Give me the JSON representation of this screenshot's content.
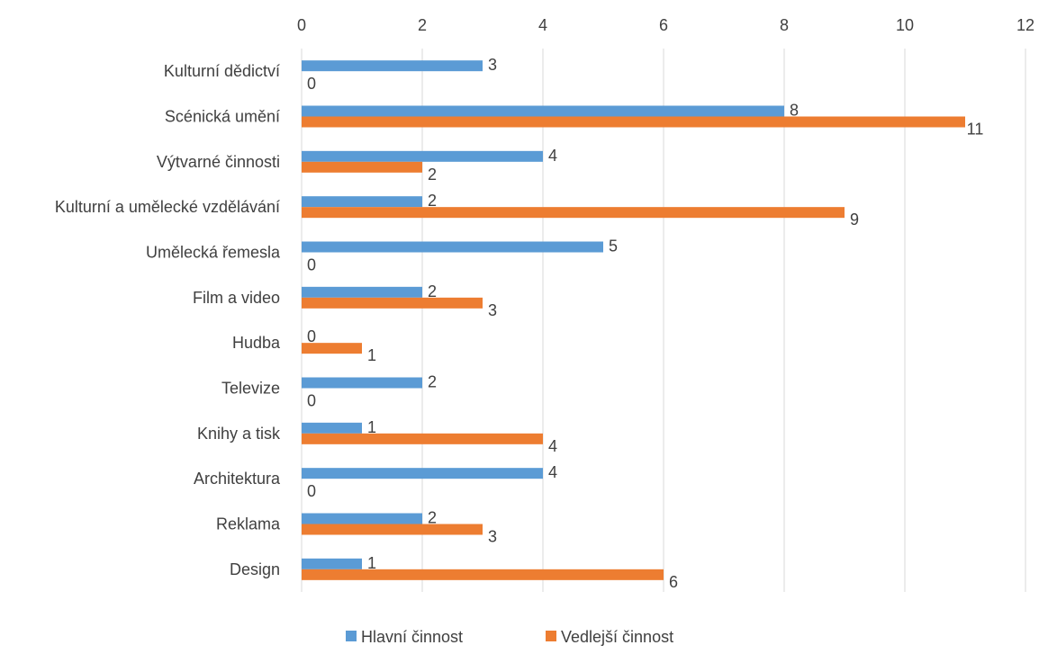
{
  "chart_data": {
    "type": "bar",
    "orientation": "horizontal",
    "title": "",
    "xlabel": "",
    "ylabel": "",
    "xlim": [
      0,
      12
    ],
    "ticks": [
      0,
      2,
      4,
      6,
      8,
      10,
      12
    ],
    "tick_labels": [
      "0",
      "2",
      "4",
      "6",
      "8",
      "10",
      "12"
    ],
    "grid": true,
    "legend_position": "bottom",
    "categories": [
      "Kulturní dědictví",
      "Scénická umění",
      "Výtvarné činnosti",
      "Kulturní a umělecké vzdělávání",
      "Umělecká řemesla",
      "Film a video",
      "Hudba",
      "Televize",
      "Knihy a tisk",
      "Architektura",
      "Reklama",
      "Design"
    ],
    "series": [
      {
        "name": "Hlavní činnost",
        "color": "#5B9BD5",
        "values": [
          3,
          8,
          4,
          2,
          5,
          2,
          0,
          2,
          1,
          4,
          2,
          1
        ],
        "value_labels": [
          "3",
          "8",
          "4",
          "2",
          "5",
          "2",
          "0",
          "2",
          "1",
          "4",
          "2",
          "1"
        ]
      },
      {
        "name": "Vedlejší činnost",
        "color": "#ED7D31",
        "values": [
          0,
          11,
          2,
          9,
          0,
          3,
          1,
          0,
          4,
          0,
          3,
          6
        ],
        "value_labels": [
          "0",
          "11",
          "2",
          "9",
          "0",
          "3",
          "1",
          "0",
          "4",
          "0",
          "3",
          "6"
        ]
      }
    ]
  }
}
